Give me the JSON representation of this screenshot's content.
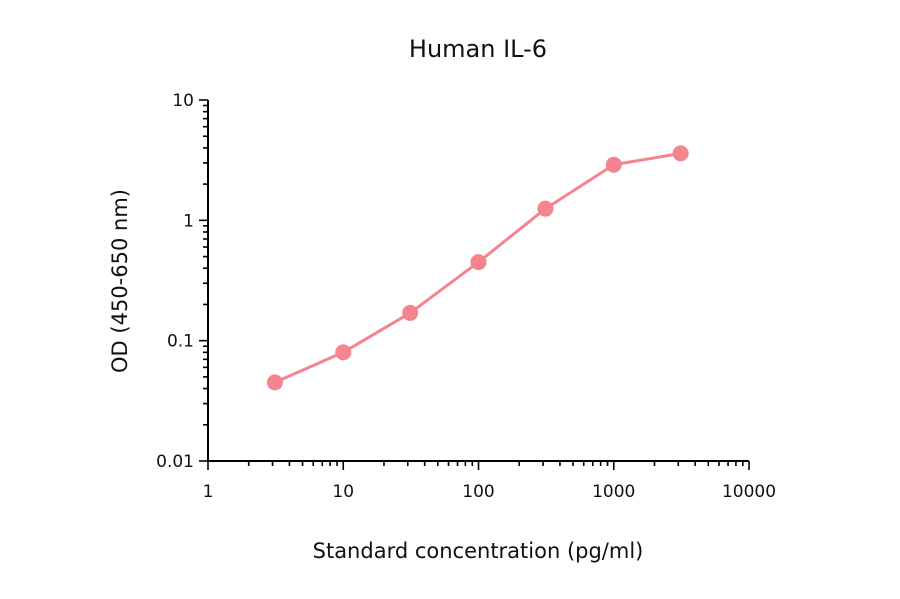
{
  "chart_data": {
    "type": "line",
    "title": "Human IL-6",
    "xlabel": "Standard concentration (pg/ml)",
    "ylabel": "OD (450-650 nm)",
    "x_scale": "log",
    "y_scale": "log",
    "xlim": [
      1,
      10000
    ],
    "ylim": [
      0.01,
      10
    ],
    "x_ticks": [
      1,
      10,
      100,
      1000,
      10000
    ],
    "x_tick_labels": [
      "1",
      "10",
      "100",
      "1000",
      "10000"
    ],
    "y_ticks": [
      0.01,
      0.1,
      1,
      10
    ],
    "y_tick_labels": [
      "0.01",
      "0.1",
      "1",
      "10"
    ],
    "grid": false,
    "series": [
      {
        "color": "#f4848f",
        "marker": "circle",
        "x": [
          3.125,
          10,
          31.25,
          100,
          312.5,
          1000,
          3125
        ],
        "y": [
          0.045,
          0.08,
          0.17,
          0.45,
          1.25,
          2.9,
          3.6
        ]
      }
    ]
  }
}
